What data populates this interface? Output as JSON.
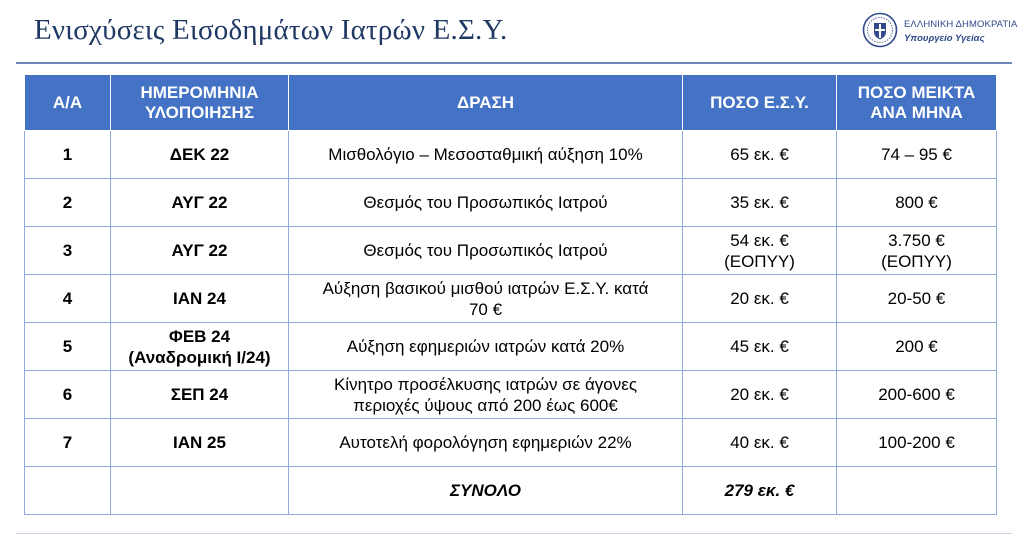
{
  "slide": {
    "title": "Ενισχύσεις Εισοδημάτων Ιατρών Ε.Σ.Υ.",
    "logo": {
      "line1": "ΕΛΛΗΝΙΚΗ ΔΗΜΟΚΡΑΤΙΑ",
      "line2": "Υπουργείο Υγείας",
      "icon": "greek-coat-of-arms-icon"
    },
    "colors": {
      "header_bg": "#4472c4",
      "border": "#8eaadb",
      "title": "#1f3864"
    }
  },
  "table": {
    "headers": [
      "Α/Α",
      "ΗΜΕΡΟΜΗΝΙΑ\nΥΛΟΠΟΙΗΣΗΣ",
      "ΔΡΑΣΗ",
      "ΠΟΣΟ Ε.Σ.Υ.",
      "ΠΟΣΟ ΜΕΙΚΤΑ\nΑΝΑ ΜΗΝΑ"
    ],
    "rows": [
      [
        "1",
        "ΔΕΚ 22",
        "Μισθολόγιο – Μεσοσταθμική αύξηση 10%",
        "65 εκ. €",
        "74 – 95 €"
      ],
      [
        "2",
        "ΑΥΓ 22",
        "Θεσμός του Προσωπικός Ιατρού",
        "35 εκ. €",
        "800 €"
      ],
      [
        "3",
        "ΑΥΓ 22",
        "Θεσμός του Προσωπικός Ιατρού",
        "54 εκ. €\n(ΕΟΠΥΥ)",
        "3.750 €\n(ΕΟΠΥΥ)"
      ],
      [
        "4",
        "ΙΑΝ 24",
        "Αύξηση βασικού μισθού ιατρών Ε.Σ.Υ. κατά\n70 €",
        "20 εκ. €",
        "20-50 €"
      ],
      [
        "5",
        "ΦΕΒ 24\n(Αναδρομική Ι/24)",
        "Αύξηση εφημεριών ιατρών κατά 20%",
        "45 εκ. €",
        "200 €"
      ],
      [
        "6",
        "ΣΕΠ 24",
        "Κίνητρο προσέλκυσης ιατρών σε άγονες\nπεριοχές ύψους από 200 έως 600€",
        "20 εκ. €",
        "200-600 €"
      ],
      [
        "7",
        "ΙΑΝ 25",
        "Αυτοτελή φορολόγηση εφημεριών 22%",
        "40 εκ. €",
        "100-200 €"
      ]
    ],
    "total": {
      "label": "ΣΥΝΟΛΟ",
      "value": "279 εκ. €"
    }
  }
}
